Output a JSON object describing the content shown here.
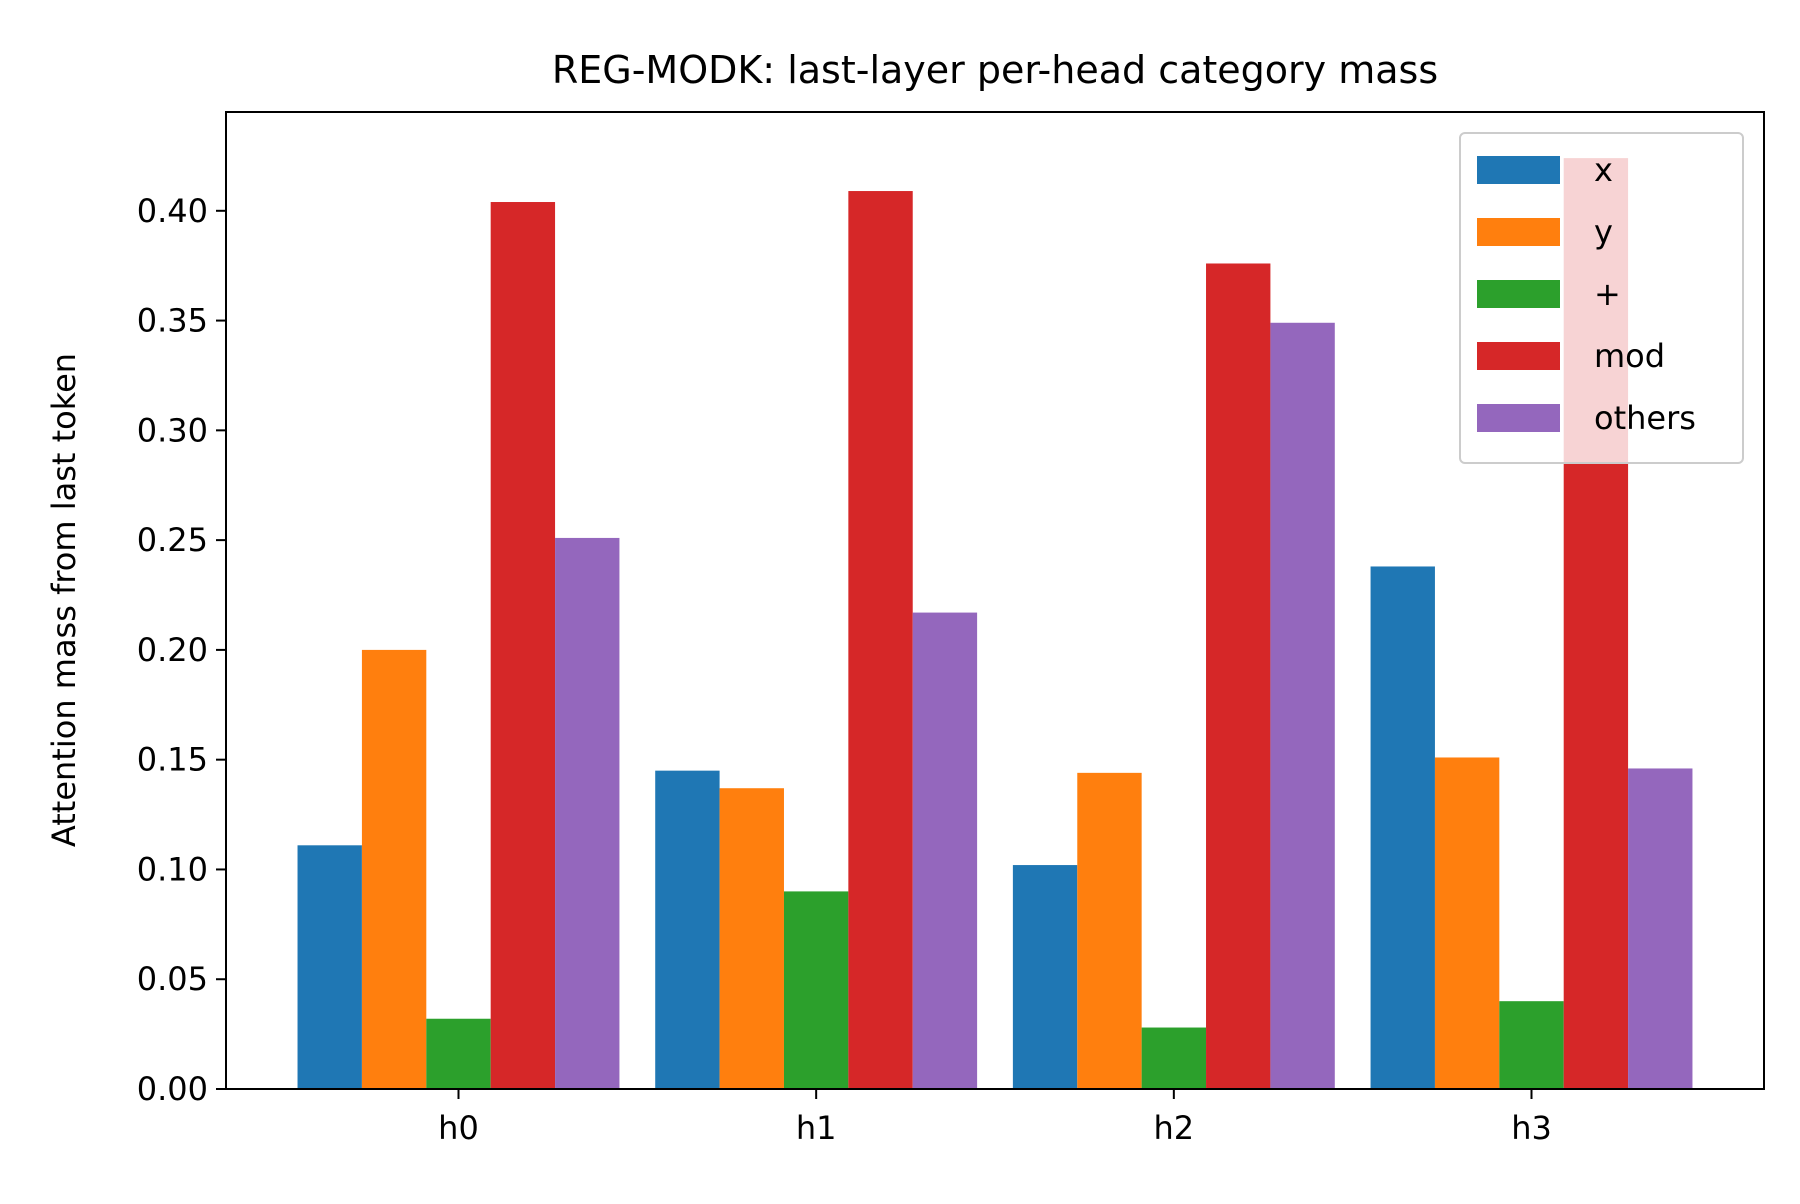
{
  "chart_data": {
    "type": "bar",
    "title": "REG-MODK: last-layer per-head category mass",
    "xlabel": "",
    "ylabel": "Attention mass from last token",
    "categories": [
      "h0",
      "h1",
      "h2",
      "h3"
    ],
    "ylim": [
      0,
      0.445
    ],
    "yticks": [
      "0.00",
      "0.05",
      "0.10",
      "0.15",
      "0.20",
      "0.25",
      "0.30",
      "0.35",
      "0.40"
    ],
    "grid": false,
    "legend_position": "top-right",
    "series": [
      {
        "name": "x",
        "color": "#1f77b4",
        "values": [
          0.111,
          0.145,
          0.102,
          0.238
        ]
      },
      {
        "name": "y",
        "color": "#ff7f0e",
        "values": [
          0.2,
          0.137,
          0.144,
          0.151
        ]
      },
      {
        "name": "+",
        "color": "#2ca02c",
        "values": [
          0.032,
          0.09,
          0.028,
          0.04
        ]
      },
      {
        "name": "mod",
        "color": "#d62728",
        "values": [
          0.404,
          0.409,
          0.376,
          0.424
        ]
      },
      {
        "name": "others",
        "color": "#9467bd",
        "values": [
          0.251,
          0.217,
          0.349,
          0.146
        ]
      }
    ]
  }
}
